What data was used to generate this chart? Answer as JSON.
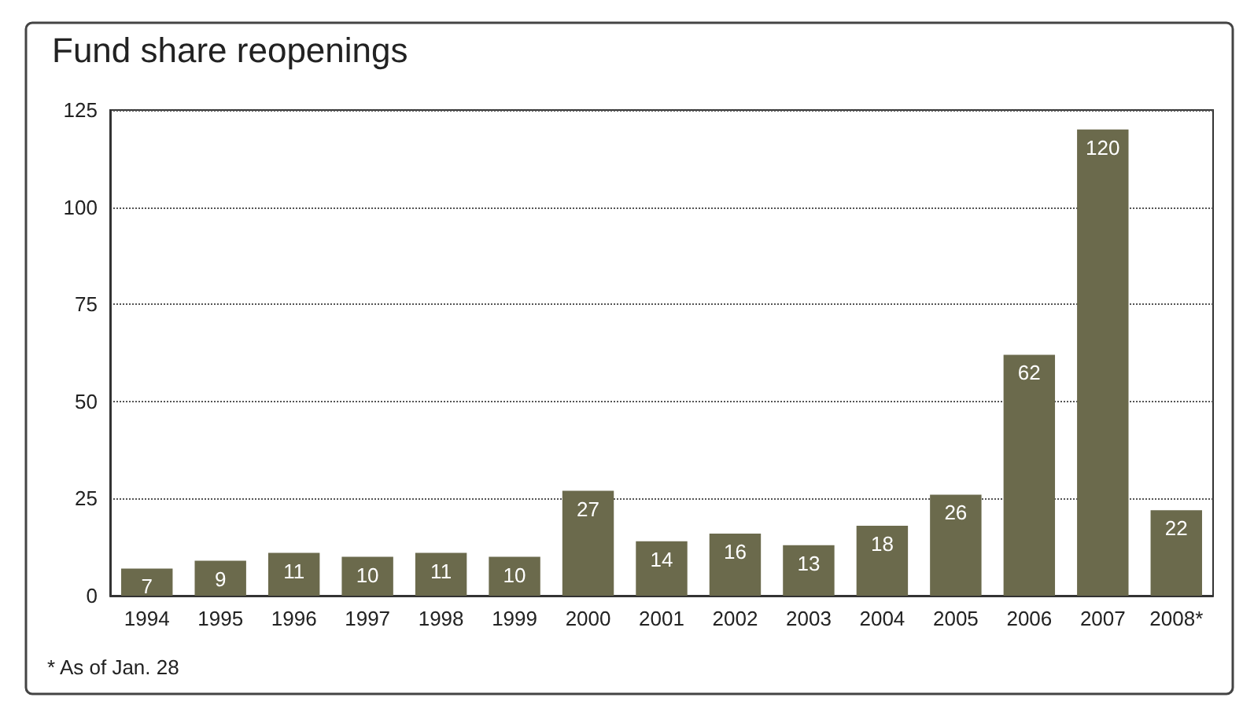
{
  "chart_data": {
    "type": "bar",
    "title": "Fund share reopenings",
    "categories": [
      "1994",
      "1995",
      "1996",
      "1997",
      "1998",
      "1999",
      "2000",
      "2001",
      "2002",
      "2003",
      "2004",
      "2005",
      "2006",
      "2007",
      "2008*"
    ],
    "values": [
      7,
      9,
      11,
      10,
      11,
      10,
      27,
      14,
      16,
      13,
      18,
      26,
      62,
      120,
      22
    ],
    "color": "#6b6a4c",
    "ylim": [
      0,
      125
    ],
    "yticks": [
      0,
      25,
      50,
      75,
      100,
      125
    ],
    "grid": "y",
    "data_labels": true,
    "annotations": [
      "* As of Jan. 28"
    ]
  }
}
